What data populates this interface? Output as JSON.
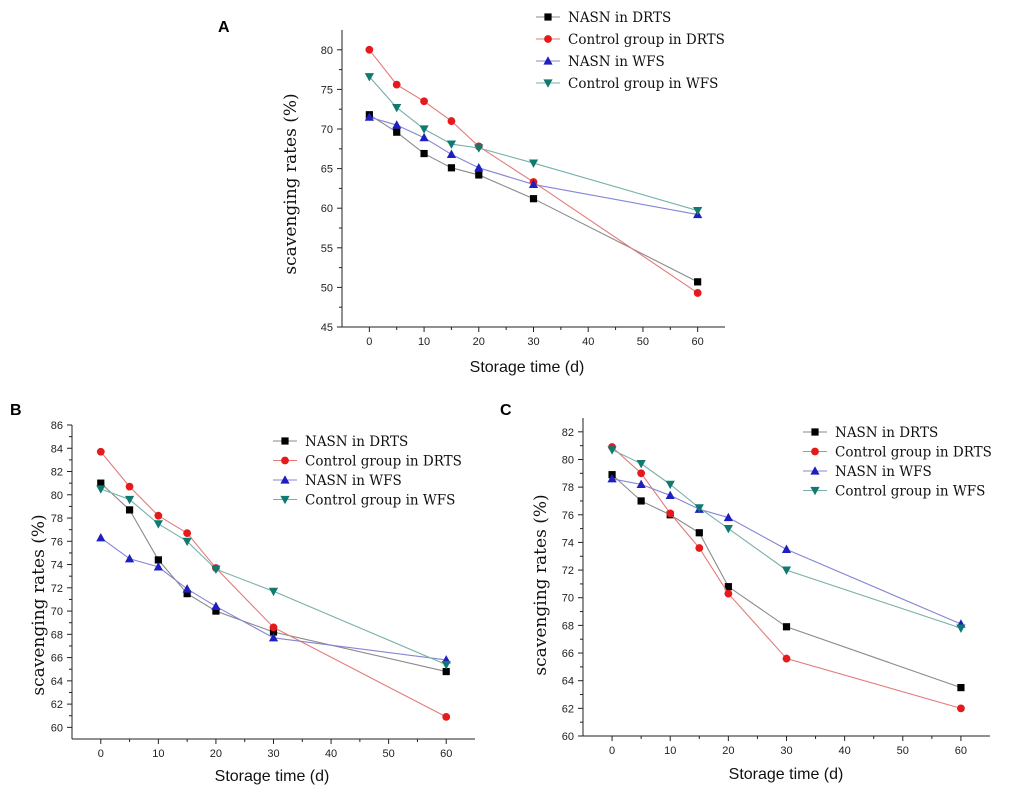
{
  "colors": {
    "NASN in DRTS": "#000000",
    "Control group in DRTS": "#e41a1c",
    "NASN in WFS": "#1f1fbf",
    "Control group in WFS": "#0f7a70",
    "line_DRTS_NASN": "#8a8a8a",
    "line_DRTS_Control": "#e47a7a",
    "line_WFS_NASN": "#8585d6",
    "line_WFS_Control": "#77b0aa"
  },
  "chart_data": [
    {
      "panel": "A",
      "type": "line",
      "xlabel": "Storage time (d)",
      "ylabel": "scavenging rates (%)",
      "x": [
        0,
        5,
        10,
        15,
        20,
        30,
        60
      ],
      "xlim": [
        -5,
        65
      ],
      "xticks": [
        0,
        10,
        20,
        30,
        40,
        50,
        60
      ],
      "ylim": [
        45,
        82.5
      ],
      "yticks": [
        45,
        50,
        55,
        60,
        65,
        70,
        75,
        80
      ],
      "legend": "top-right",
      "series": [
        {
          "name": "NASN in DRTS",
          "marker": "square",
          "values": [
            71.8,
            69.6,
            66.9,
            65.1,
            64.2,
            61.2,
            50.7
          ]
        },
        {
          "name": "Control group in DRTS",
          "marker": "circle",
          "values": [
            80.0,
            75.6,
            73.5,
            71.0,
            67.8,
            63.3,
            49.3
          ]
        },
        {
          "name": "NASN in WFS",
          "marker": "triangle-up",
          "values": [
            71.5,
            70.5,
            68.9,
            66.8,
            65.1,
            63.0,
            59.2
          ]
        },
        {
          "name": "Control group in WFS",
          "marker": "triangle-down",
          "values": [
            76.6,
            72.7,
            70.0,
            68.1,
            67.6,
            65.7,
            59.7
          ]
        }
      ]
    },
    {
      "panel": "B",
      "type": "line",
      "xlabel": "Storage time (d)",
      "ylabel": "scavenging rates (%)",
      "x": [
        0,
        5,
        10,
        15,
        20,
        30,
        60
      ],
      "xlim": [
        -5,
        65
      ],
      "xticks": [
        0,
        10,
        20,
        30,
        40,
        50,
        60
      ],
      "ylim": [
        59,
        86
      ],
      "yticks": [
        60,
        62,
        64,
        66,
        68,
        70,
        72,
        74,
        76,
        78,
        80,
        82,
        84,
        86
      ],
      "legend": "top-right",
      "series": [
        {
          "name": "NASN in DRTS",
          "marker": "square",
          "values": [
            81.0,
            78.7,
            74.4,
            71.5,
            70.0,
            68.2,
            64.8
          ]
        },
        {
          "name": "Control group in DRTS",
          "marker": "circle",
          "values": [
            83.7,
            80.7,
            78.2,
            76.7,
            73.7,
            68.6,
            60.9
          ]
        },
        {
          "name": "NASN in WFS",
          "marker": "triangle-up",
          "values": [
            76.3,
            74.5,
            73.8,
            71.9,
            70.4,
            67.7,
            65.8
          ]
        },
        {
          "name": "Control group in WFS",
          "marker": "triangle-down",
          "values": [
            80.5,
            79.6,
            77.5,
            76.0,
            73.6,
            71.7,
            65.4
          ]
        }
      ]
    },
    {
      "panel": "C",
      "type": "line",
      "xlabel": "Storage time (d)",
      "ylabel": "scavenging rates (%)",
      "x": [
        0,
        5,
        10,
        15,
        20,
        30,
        60
      ],
      "xlim": [
        -5,
        65
      ],
      "xticks": [
        0,
        10,
        20,
        30,
        40,
        50,
        60
      ],
      "ylim": [
        60,
        83
      ],
      "yticks": [
        60,
        62,
        64,
        66,
        68,
        70,
        72,
        74,
        76,
        78,
        80,
        82
      ],
      "legend": "top-right",
      "series": [
        {
          "name": "NASN in DRTS",
          "marker": "square",
          "values": [
            78.9,
            77.0,
            76.0,
            74.7,
            70.8,
            67.9,
            63.5
          ]
        },
        {
          "name": "Control group in DRTS",
          "marker": "circle",
          "values": [
            80.9,
            79.0,
            76.1,
            73.6,
            70.3,
            65.6,
            62.0
          ]
        },
        {
          "name": "NASN in WFS",
          "marker": "triangle-up",
          "values": [
            78.6,
            78.2,
            77.4,
            76.4,
            75.8,
            73.5,
            68.1
          ]
        },
        {
          "name": "Control group in WFS",
          "marker": "triangle-down",
          "values": [
            80.7,
            79.7,
            78.2,
            76.5,
            75.0,
            72.0,
            67.8
          ]
        }
      ]
    }
  ]
}
